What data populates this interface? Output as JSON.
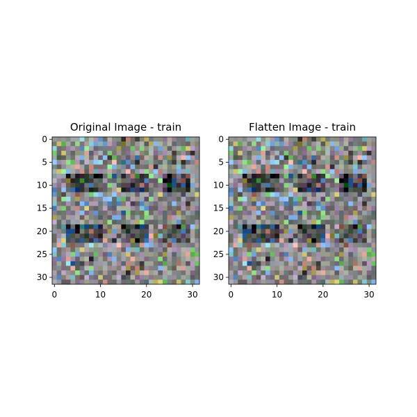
{
  "chart_data": [
    {
      "type": "heatmap",
      "title": "Original Image - train",
      "grid": false,
      "xlim": [
        -0.5,
        31.5
      ],
      "ylim": [
        31.5,
        -0.5
      ],
      "xticks": [
        0,
        10,
        20,
        30
      ],
      "yticks": [
        0,
        5,
        10,
        15,
        20,
        25,
        30
      ],
      "width": 32,
      "height": 32,
      "pixels": "random RGB noise image (32x32), values not individually readable"
    },
    {
      "type": "heatmap",
      "title": "Flatten Image - train",
      "grid": false,
      "xlim": [
        -0.5,
        31.5
      ],
      "ylim": [
        31.5,
        -0.5
      ],
      "xticks": [
        0,
        10,
        20,
        30
      ],
      "yticks": [
        0,
        5,
        10,
        15,
        20,
        25,
        30
      ],
      "width": 32,
      "height": 32,
      "pixels": "same image as Original Image - train"
    }
  ]
}
